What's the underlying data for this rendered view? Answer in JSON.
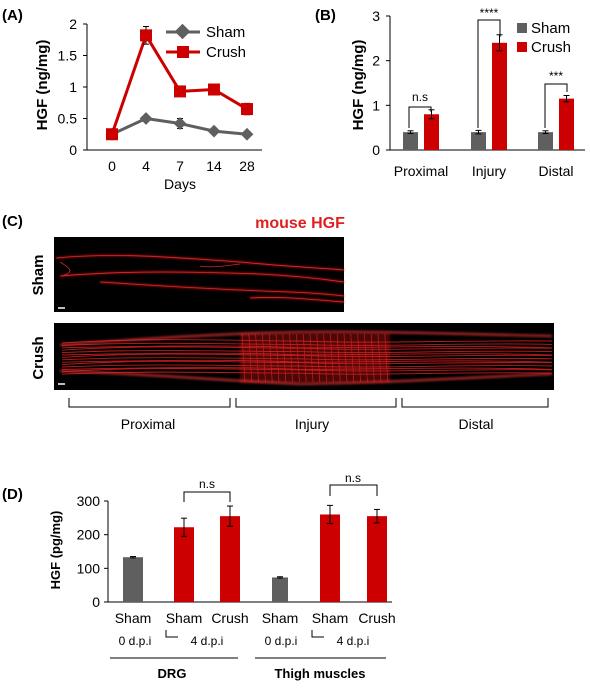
{
  "colors": {
    "sham": "#5f5f5f",
    "crush": "#cc0000",
    "hgf_red": "#e02020",
    "bg": "#ffffff",
    "micro_bg": "#000000"
  },
  "chart_data": [
    {
      "panel": "(A)",
      "type": "line",
      "x": [
        "0",
        "4",
        "7",
        "14",
        "28"
      ],
      "ylabel": "HGF (ng/mg)",
      "xlabel": "Days",
      "ylim": [
        0,
        2
      ],
      "yticks": [
        "0",
        "0.5",
        "1",
        "1.5",
        "2"
      ],
      "legend_position": "top-right",
      "series": [
        {
          "name": "Sham",
          "values": [
            0.25,
            0.5,
            0.42,
            0.3,
            0.25
          ],
          "errors": [
            0.02,
            0.03,
            0.08,
            0.03,
            0.02
          ]
        },
        {
          "name": "Crush",
          "values": [
            0.25,
            1.82,
            0.93,
            0.96,
            0.65
          ],
          "errors": [
            0.02,
            0.14,
            0.04,
            0.04,
            0.09
          ]
        }
      ]
    },
    {
      "panel": "(B)",
      "type": "bar",
      "categories": [
        "Proximal",
        "Injury",
        "Distal"
      ],
      "ylabel": "HGF (ng/mg)",
      "ylim": [
        0,
        3
      ],
      "yticks": [
        "0",
        "1",
        "2",
        "3"
      ],
      "legend_position": "top-right",
      "series": [
        {
          "name": "Sham",
          "values": [
            0.4,
            0.4,
            0.4
          ],
          "errors": [
            0.03,
            0.04,
            0.03
          ]
        },
        {
          "name": "Crush",
          "values": [
            0.8,
            2.4,
            1.15
          ],
          "errors": [
            0.1,
            0.18,
            0.07
          ]
        }
      ],
      "annotations": [
        "n.s",
        "****",
        "***"
      ]
    },
    {
      "panel": "(D)",
      "type": "bar",
      "categories": [
        "Sham",
        "Sham",
        "Crush",
        "Sham",
        "Sham",
        "Crush"
      ],
      "ylabel": "HGF (pg/mg)",
      "ylim": [
        0,
        300
      ],
      "yticks": [
        "0",
        "100",
        "200",
        "300"
      ],
      "values": [
        133,
        222,
        255,
        73,
        260,
        255
      ],
      "errors": [
        2,
        27,
        30,
        2,
        27,
        20
      ],
      "bar_groups": [
        "sham",
        "crush",
        "crush",
        "sham",
        "crush",
        "crush"
      ],
      "annotations": [
        "n.s",
        "n.s"
      ],
      "sublabels": [
        "0 d.p.i",
        "4 d.p.i",
        "0 d.p.i",
        "4 d.p.i"
      ],
      "group_labels": [
        "DRG",
        "Thigh muscles"
      ]
    }
  ],
  "panelC": {
    "label": "(C)",
    "title": "mouse HGF",
    "row_labels": [
      "Sham",
      "Crush"
    ],
    "regions": [
      "Proximal",
      "Injury",
      "Distal"
    ]
  }
}
